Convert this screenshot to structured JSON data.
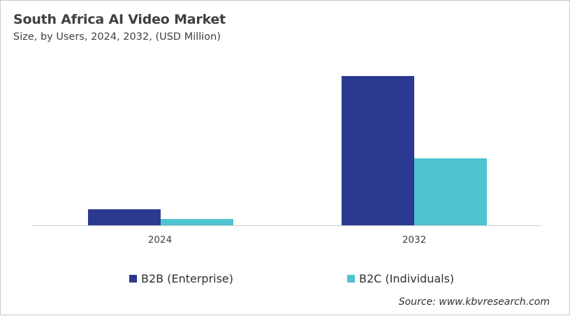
{
  "header": {
    "title": "South Africa AI Video Market",
    "subtitle": "Size, by Users, 2024, 2032, (USD Million)"
  },
  "legend": {
    "items": [
      {
        "label": "B2B (Enterprise)",
        "color": "#2b3990"
      },
      {
        "label": "B2C (Individuals)",
        "color": "#4fc3cf"
      }
    ]
  },
  "x_axis": {
    "ticks": [
      "2024",
      "2032"
    ]
  },
  "footer": {
    "source": "Source: www.kbvresearch.com"
  },
  "chart_data": {
    "type": "bar",
    "title": "South Africa AI Video Market",
    "subtitle": "Size, by Users, 2024, 2032, (USD Million)",
    "categories": [
      "2024",
      "2032"
    ],
    "series": [
      {
        "name": "B2B (Enterprise)",
        "color": "#2b3990",
        "values": [
          23,
          214
        ]
      },
      {
        "name": "B2C (Individuals)",
        "color": "#4fc3cf",
        "values": [
          9,
          96
        ]
      }
    ],
    "xlabel": "",
    "ylabel": "",
    "value_note": "No y-axis values shown; values are relative estimates from bar heights",
    "ylim": [
      0,
      214
    ],
    "grid": false,
    "legend_position": "bottom",
    "source": "Source: www.kbvresearch.com"
  }
}
